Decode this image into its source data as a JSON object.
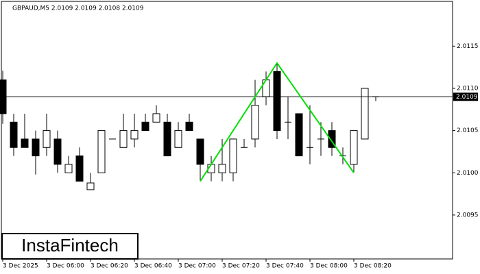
{
  "chart_data": {
    "type": "candlestick",
    "title": "GBPAUD,M5  2.0109 2.0109 2.0108 2.0109",
    "watermark": "InstaFintech",
    "categories": [
      "3 Dec 2025",
      null,
      null,
      null,
      "3 Dec 06:00",
      null,
      null,
      null,
      "3 Dec 06:20",
      null,
      null,
      null,
      "3 Dec 06:40",
      null,
      null,
      null,
      "3 Dec 07:00",
      null,
      null,
      null,
      "3 Dec 07:20",
      null,
      null,
      null,
      "3 Dec 07:40",
      null,
      null,
      null,
      "3 Dec 08:00",
      null,
      null,
      null,
      "3 Dec 08:20",
      null,
      null
    ],
    "open": [
      2.0111,
      2.0106,
      2.0104,
      2.0104,
      2.0103,
      2.0104,
      2.01,
      2.0102,
      2.0098,
      2.01,
      2.0104,
      2.0103,
      2.0104,
      2.0106,
      2.0106,
      2.0106,
      2.0103,
      2.0106,
      2.0104,
      2.01,
      2.01,
      2.01,
      2.0103,
      2.0104,
      2.0109,
      2.0112,
      2.0106,
      2.0107,
      2.0103,
      2.0104,
      2.0105,
      2.0102,
      2.0101,
      2.0104,
      2.0109
    ],
    "high": [
      2.01121,
      2.0107,
      2.0107,
      2.0105,
      2.0107,
      2.0105,
      2.0102,
      2.0103,
      2.01,
      2.0105,
      2.0104,
      2.0107,
      2.0107,
      2.0107,
      2.0108,
      2.0107,
      2.0106,
      2.0107,
      2.0104,
      2.0102,
      2.0104,
      2.0104,
      2.0104,
      2.0111,
      2.0112,
      2.0113,
      2.0109,
      2.0107,
      2.0108,
      2.0106,
      2.0106,
      2.0103,
      2.0105,
      2.011,
      2.0109
    ],
    "low": [
      2.01058,
      2.0102,
      2.0103,
      2.00998,
      2.0102,
      2.01,
      2.01,
      2.0099,
      2.0098,
      2.01,
      2.0104,
      2.0103,
      2.0103,
      2.0105,
      2.0106,
      2.0102,
      2.0103,
      2.0105,
      2.0099,
      2.0099,
      2.0099,
      2.0099,
      2.0103,
      2.0103,
      2.0108,
      2.0104,
      2.0104,
      2.0102,
      2.0101,
      2.0102,
      2.0102,
      2.0101,
      2.01,
      2.0104,
      2.01085
    ],
    "close": [
      2.0107,
      2.0103,
      2.0103,
      2.0102,
      2.0105,
      2.0101,
      2.0101,
      2.0099,
      2.00988,
      2.0105,
      2.0104,
      2.0105,
      2.0105,
      2.0105,
      2.0107,
      2.0102,
      2.0105,
      2.0105,
      2.0101,
      2.0101,
      2.0101,
      2.0104,
      2.0103,
      2.0108,
      2.0111,
      2.0105,
      2.0106,
      2.0102,
      2.0103,
      2.0104,
      2.0103,
      2.0102,
      2.0105,
      2.011,
      2.0109
    ],
    "color_up": "#ffffff",
    "color_down": "#000000",
    "ylim": [
      2.00898,
      2.01203
    ],
    "yticks": [
      2.0095,
      {
        "value": 2.01,
        "label": "2.0100"
      },
      2.0105,
      {
        "value": 2.011,
        "label": "2.0110"
      },
      2.0115
    ],
    "last_price": 2.0109,
    "pattern": {
      "color": "#00e000",
      "x": [
        18,
        25,
        32
      ],
      "values": [
        2.0099,
        2.0113,
        2.01
      ]
    }
  }
}
